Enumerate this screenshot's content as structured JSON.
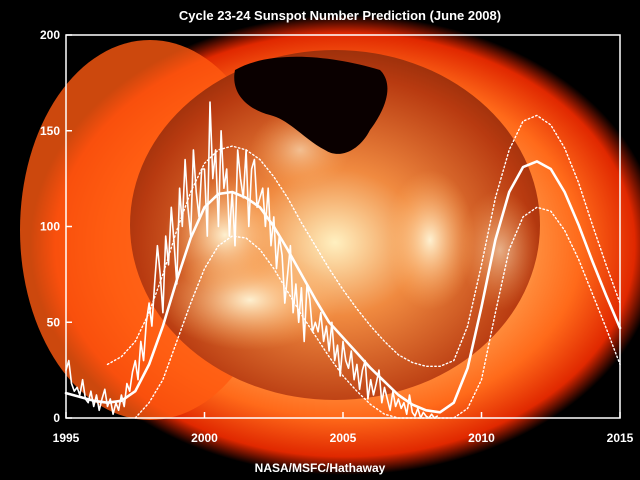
{
  "chart_data": {
    "type": "line",
    "title": "Cycle 23-24 Sunspot Number Prediction (June 2008)",
    "credit": "NASA/MSFC/Hathaway",
    "xlabel": "",
    "ylabel": "",
    "xlim": [
      1995,
      2015
    ],
    "ylim": [
      0,
      200
    ],
    "x_ticks": [
      1995,
      2000,
      2005,
      2010,
      2015
    ],
    "y_ticks": [
      0,
      50,
      100,
      150,
      200
    ],
    "grid": false,
    "background": "solar-xray-image",
    "colors": {
      "lines": "#ffffff",
      "background": "#000000",
      "sun_core": "#ffd28a",
      "sun_edge": "#e02000"
    },
    "series": [
      {
        "style": "solid-thin",
        "x": [
          1995.0,
          1995.1,
          1995.2,
          1995.3,
          1995.4,
          1995.5,
          1995.6,
          1995.7,
          1995.8,
          1995.9,
          1996.0,
          1996.1,
          1996.2,
          1996.3,
          1996.4,
          1996.5,
          1996.6,
          1996.7,
          1996.8,
          1996.9,
          1997.0,
          1997.1,
          1997.2,
          1997.3,
          1997.4,
          1997.5,
          1997.6,
          1997.7,
          1997.8,
          1997.9,
          1998.0,
          1998.1,
          1998.2,
          1998.3,
          1998.4,
          1998.5,
          1998.6,
          1998.7,
          1998.8,
          1998.9,
          1999.0,
          1999.1,
          1999.2,
          1999.3,
          1999.4,
          1999.5,
          1999.6,
          1999.7,
          1999.8,
          1999.9,
          2000.0,
          2000.1,
          2000.2,
          2000.3,
          2000.4,
          2000.5,
          2000.6,
          2000.7,
          2000.8,
          2000.9,
          2001.0,
          2001.1,
          2001.2,
          2001.3,
          2001.4,
          2001.5,
          2001.6,
          2001.7,
          2001.8,
          2001.9,
          2002.0,
          2002.1,
          2002.2,
          2002.3,
          2002.4,
          2002.5,
          2002.6,
          2002.7,
          2002.8,
          2002.9,
          2003.0,
          2003.1,
          2003.2,
          2003.3,
          2003.4,
          2003.5,
          2003.6,
          2003.7,
          2003.8,
          2003.9,
          2004.0,
          2004.1,
          2004.2,
          2004.3,
          2004.4,
          2004.5,
          2004.6,
          2004.7,
          2004.8,
          2004.9,
          2005.0,
          2005.1,
          2005.2,
          2005.3,
          2005.4,
          2005.5,
          2005.6,
          2005.7,
          2005.8,
          2005.9,
          2006.0,
          2006.1,
          2006.2,
          2006.3,
          2006.4,
          2006.5,
          2006.6,
          2006.7,
          2006.8,
          2006.9,
          2007.0,
          2007.1,
          2007.2,
          2007.3,
          2007.4,
          2007.5,
          2007.6,
          2007.7,
          2007.8,
          2007.9,
          2008.0,
          2008.1,
          2008.2,
          2008.3,
          2008.4
        ],
        "y": [
          25,
          30,
          18,
          14,
          16,
          12,
          20,
          10,
          8,
          14,
          6,
          12,
          4,
          10,
          15,
          6,
          10,
          2,
          8,
          4,
          12,
          6,
          18,
          14,
          24,
          30,
          20,
          40,
          30,
          50,
          60,
          48,
          70,
          90,
          75,
          55,
          95,
          80,
          110,
          92,
          70,
          120,
          100,
          135,
          110,
          95,
          140,
          118,
          105,
          130,
          130,
          95,
          165,
          125,
          140,
          100,
          150,
          120,
          130,
          95,
          118,
          90,
          140,
          125,
          115,
          140,
          100,
          130,
          135,
          110,
          115,
          120,
          100,
          120,
          90,
          105,
          78,
          95,
          85,
          60,
          75,
          90,
          55,
          70,
          50,
          68,
          40,
          70,
          62,
          45,
          50,
          45,
          55,
          40,
          48,
          35,
          50,
          30,
          38,
          22,
          40,
          30,
          26,
          35,
          20,
          28,
          15,
          25,
          30,
          10,
          20,
          12,
          18,
          25,
          8,
          16,
          10,
          4,
          14,
          6,
          10,
          5,
          8,
          2,
          12,
          3,
          1,
          5,
          0,
          3,
          1,
          0,
          2,
          0,
          1
        ]
      },
      {
        "style": "solid-thick",
        "x": [
          1995.0,
          1995.5,
          1996.0,
          1996.5,
          1997.0,
          1997.5,
          1998.0,
          1998.5,
          1999.0,
          1999.5,
          2000.0,
          2000.5,
          2001.0,
          2001.5,
          2002.0,
          2002.5,
          2003.0,
          2003.5,
          2004.0,
          2004.5,
          2005.0,
          2005.5,
          2006.0,
          2006.5,
          2007.0,
          2007.5,
          2008.0,
          2008.5,
          2009.0,
          2009.5,
          2010.0,
          2010.5,
          2011.0,
          2011.5,
          2012.0,
          2012.5,
          2013.0,
          2013.5,
          2014.0,
          2014.5,
          2015.0
        ],
        "y": [
          13,
          11,
          9,
          8,
          9,
          14,
          28,
          48,
          72,
          94,
          110,
          117,
          118,
          115,
          110,
          100,
          88,
          75,
          62,
          50,
          42,
          34,
          26,
          19,
          12,
          7,
          4,
          3,
          8,
          26,
          58,
          93,
          118,
          131,
          134,
          130,
          118,
          101,
          82,
          64,
          47
        ]
      },
      {
        "style": "dotted",
        "x": [
          1996.5,
          1997.0,
          1997.5,
          1998.0,
          1998.5,
          1999.0,
          1999.5,
          2000.0,
          2000.5,
          2001.0,
          2001.5,
          2002.0,
          2002.5,
          2003.0,
          2003.5,
          2004.0,
          2004.5,
          2005.0,
          2005.5,
          2006.0,
          2006.5,
          2007.0,
          2007.5,
          2008.0,
          2008.5,
          2009.0,
          2009.5,
          2010.0,
          2010.5,
          2011.0,
          2011.5,
          2012.0,
          2012.5,
          2013.0,
          2013.5,
          2014.0,
          2014.5,
          2015.0
        ],
        "y": [
          28,
          32,
          40,
          55,
          75,
          98,
          118,
          133,
          140,
          142,
          140,
          135,
          126,
          115,
          102,
          90,
          78,
          67,
          57,
          48,
          40,
          33,
          29,
          27,
          27,
          30,
          48,
          80,
          115,
          140,
          155,
          158,
          153,
          141,
          123,
          101,
          80,
          60
        ]
      },
      {
        "style": "dotted",
        "x": [
          1997.5,
          1998.0,
          1998.5,
          1999.0,
          1999.5,
          2000.0,
          2000.5,
          2001.0,
          2001.5,
          2002.0,
          2002.5,
          2003.0,
          2003.5,
          2004.0,
          2004.5,
          2005.0,
          2005.5,
          2006.0,
          2006.5,
          2007.0,
          2007.5,
          2008.0,
          2008.5,
          2009.0,
          2009.5,
          2010.0,
          2010.5,
          2011.0,
          2011.5,
          2012.0,
          2012.5,
          2013.0,
          2013.5,
          2014.0,
          2014.5,
          2015.0
        ],
        "y": [
          0,
          8,
          20,
          40,
          60,
          78,
          90,
          95,
          94,
          88,
          78,
          66,
          54,
          43,
          32,
          22,
          14,
          7,
          2,
          0,
          0,
          0,
          0,
          0,
          5,
          20,
          55,
          88,
          105,
          110,
          108,
          98,
          83,
          65,
          47,
          28
        ]
      }
    ]
  }
}
